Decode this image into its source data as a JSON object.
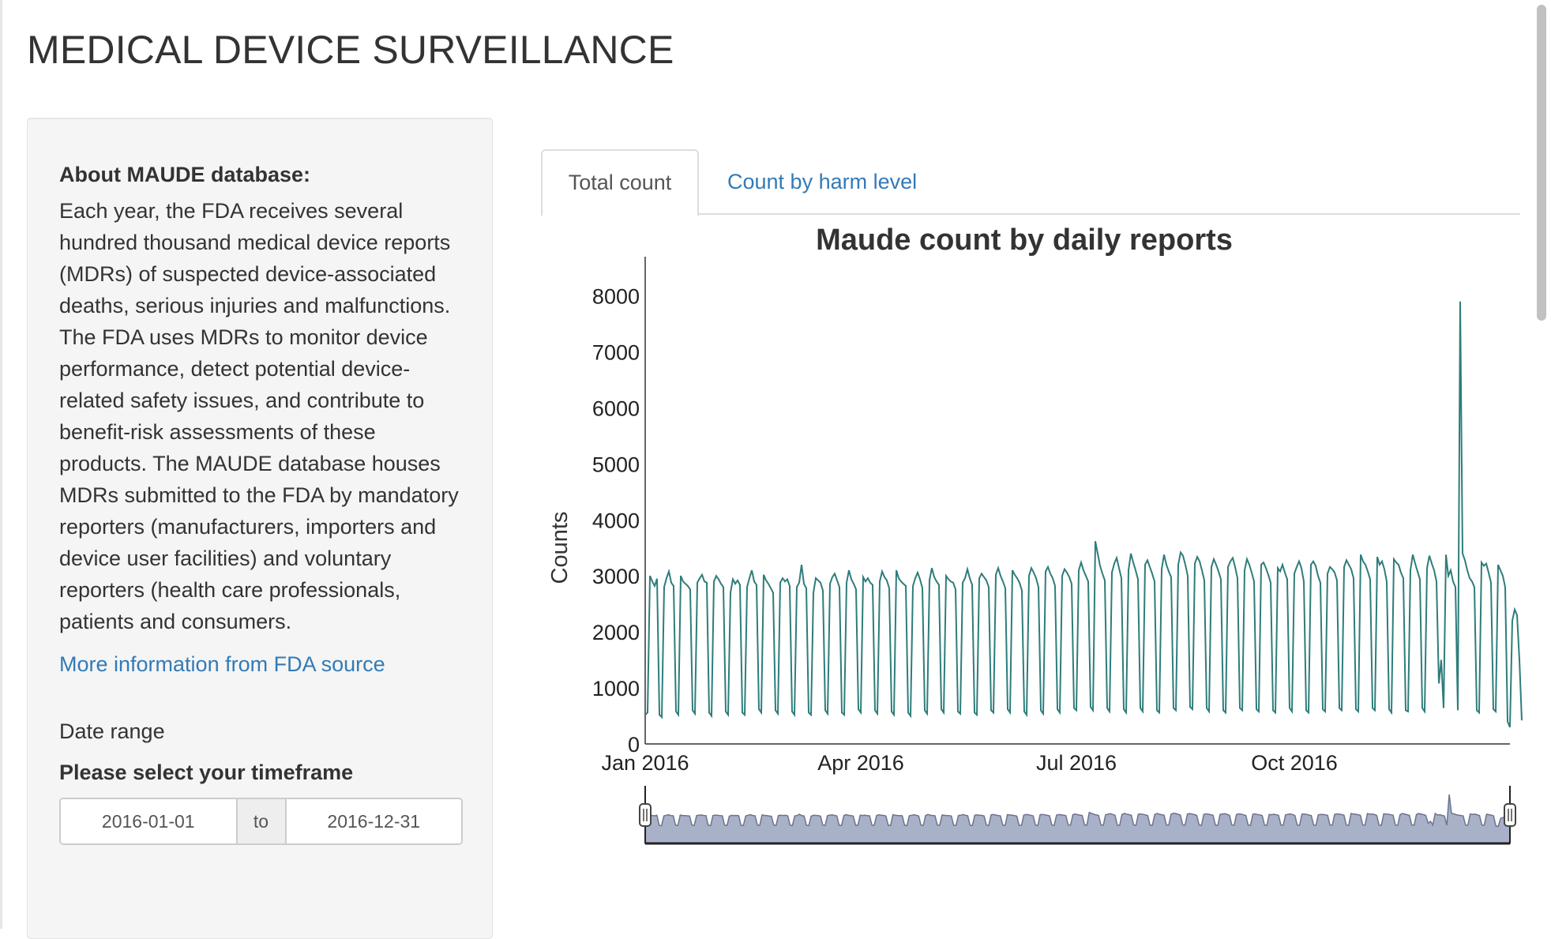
{
  "page": {
    "title": "MEDICAL DEVICE SURVEILLANCE"
  },
  "sidebar": {
    "about_heading": "About MAUDE database:",
    "about_text": "Each year, the FDA receives several hundred thousand medical device reports (MDRs) of suspected device-associated deaths, serious injuries and malfunctions. The FDA uses MDRs to monitor device performance, detect potential device-related safety issues, and contribute to benefit-risk assessments of these products. The MAUDE database houses MDRs submitted to the FDA by mandatory reporters (manufacturers, importers and device user facilities) and voluntary reporters (health care professionals, patients and consumers.",
    "link_label": "More information from FDA source",
    "date_range_label": "Date range",
    "date_range_prompt": "Please select your timeframe",
    "date_start": "2016-01-01",
    "date_separator": "to",
    "date_end": "2016-12-31"
  },
  "tabs": [
    {
      "label": "Total count",
      "active": true
    },
    {
      "label": "Count by harm level",
      "active": false
    }
  ],
  "chart_data": {
    "type": "line",
    "title": "Maude count by daily reports",
    "ylabel": "Counts",
    "xlabel": "",
    "ylim": [
      0,
      8700
    ],
    "yticks": [
      0,
      1000,
      2000,
      3000,
      4000,
      5000,
      6000,
      7000,
      8000
    ],
    "xlim": [
      "2016-01-01",
      "2016-12-31"
    ],
    "xticks": [
      {
        "date": "2016-01-01",
        "label": "Jan 2016"
      },
      {
        "date": "2016-04-01",
        "label": "Apr 2016"
      },
      {
        "date": "2016-07-01",
        "label": "Jul 2016"
      },
      {
        "date": "2016-10-01",
        "label": "Oct 2016"
      }
    ],
    "line_color": "#2e7d7a",
    "grid": false,
    "legend": "none",
    "range_selector": {
      "start": "2016-01-01",
      "end": "2016-12-31",
      "fill": "#a9b1c8",
      "stroke": "#6b7390"
    },
    "series": [
      {
        "x_start": "2016-01-01",
        "values": [
          520,
          560,
          3000,
          2900,
          2820,
          2950,
          520,
          480,
          2800,
          2960,
          3080,
          2880,
          2820,
          580,
          520,
          3000,
          2900,
          2860,
          2820,
          2760,
          600,
          540,
          2880,
          2960,
          3020,
          2900,
          2880,
          560,
          500,
          2900,
          3000,
          2940,
          2860,
          2800,
          580,
          520,
          2700,
          2940,
          2860,
          2920,
          2840,
          560,
          520,
          2800,
          2960,
          3100,
          2900,
          2840,
          620,
          560,
          3020,
          2920,
          2860,
          2780,
          2700,
          600,
          540,
          2880,
          2960,
          2900,
          2940,
          2820,
          580,
          520,
          2800,
          2880,
          3200,
          2860,
          2780,
          560,
          520,
          2700,
          2960,
          2920,
          2880,
          2740,
          600,
          540,
          2860,
          2980,
          3040,
          2920,
          2800,
          560,
          520,
          2880,
          3100,
          2940,
          2860,
          2760,
          620,
          560,
          2980,
          2900,
          2960,
          2880,
          2840,
          600,
          540,
          2900,
          3080,
          2980,
          2920,
          2780,
          580,
          520,
          3100,
          2960,
          2900,
          2860,
          2820,
          560,
          500,
          2820,
          2960,
          3060,
          2940,
          2780,
          600,
          540,
          2920,
          3140,
          2980,
          2900,
          2840,
          620,
          560,
          3000,
          2940,
          2900,
          2880,
          2760,
          580,
          540,
          2880,
          2960,
          3120,
          2960,
          2840,
          560,
          520,
          2960,
          3040,
          2980,
          2920,
          2800,
          600,
          560,
          3020,
          3140,
          3000,
          2900,
          2780,
          620,
          560,
          3100,
          3020,
          2960,
          2880,
          2740,
          580,
          520,
          3000,
          3140,
          3060,
          2960,
          2800,
          600,
          540,
          3080,
          3160,
          3040,
          2960,
          2820,
          620,
          560,
          3000,
          3120,
          3060,
          2980,
          2860,
          640,
          600,
          3100,
          3240,
          3100,
          3000,
          2900,
          660,
          600,
          3620,
          3400,
          3180,
          3040,
          2920,
          640,
          580,
          3060,
          3220,
          3320,
          3140,
          2960,
          620,
          560,
          3100,
          3400,
          3240,
          3100,
          2940,
          640,
          580,
          3200,
          3280,
          3160,
          3040,
          2900,
          600,
          560,
          3120,
          3380,
          3200,
          3080,
          2980,
          640,
          600,
          3200,
          3420,
          3360,
          3200,
          3000,
          660,
          620,
          3220,
          3340,
          3260,
          3100,
          2920,
          640,
          580,
          3160,
          3300,
          3200,
          3080,
          2940,
          600,
          560,
          3160,
          3260,
          3320,
          3160,
          2960,
          640,
          600,
          3100,
          3300,
          3200,
          3060,
          2900,
          620,
          580,
          3200,
          3240,
          3140,
          3020,
          2880,
          600,
          560,
          3140,
          3080,
          3200,
          3060,
          2940,
          640,
          580,
          3040,
          3160,
          3260,
          3140,
          2900,
          600,
          560,
          3200,
          3260,
          3180,
          3000,
          2880,
          620,
          580,
          3040,
          3160,
          3120,
          3060,
          2920,
          640,
          600,
          3160,
          3280,
          3200,
          3120,
          2960,
          620,
          580,
          3380,
          3260,
          3200,
          3080,
          2940,
          640,
          600,
          3340,
          3200,
          3260,
          3120,
          2900,
          620,
          560,
          3300,
          3240,
          3200,
          3060,
          2960,
          600,
          580,
          3100,
          3380,
          3220,
          3080,
          2940,
          640,
          580,
          3140,
          3360,
          3220,
          3100,
          2900,
          1080,
          1500,
          640,
          3380,
          3000,
          3100,
          2900,
          2800,
          600,
          7900,
          3400,
          3280,
          3100,
          2960,
          2900,
          2800,
          600,
          560,
          3240,
          3180,
          3220,
          3060,
          2880,
          620,
          580,
          3200,
          3100,
          3000,
          2800,
          400,
          300,
          2200,
          2400,
          2300,
          1500,
          420
        ]
      }
    ]
  }
}
